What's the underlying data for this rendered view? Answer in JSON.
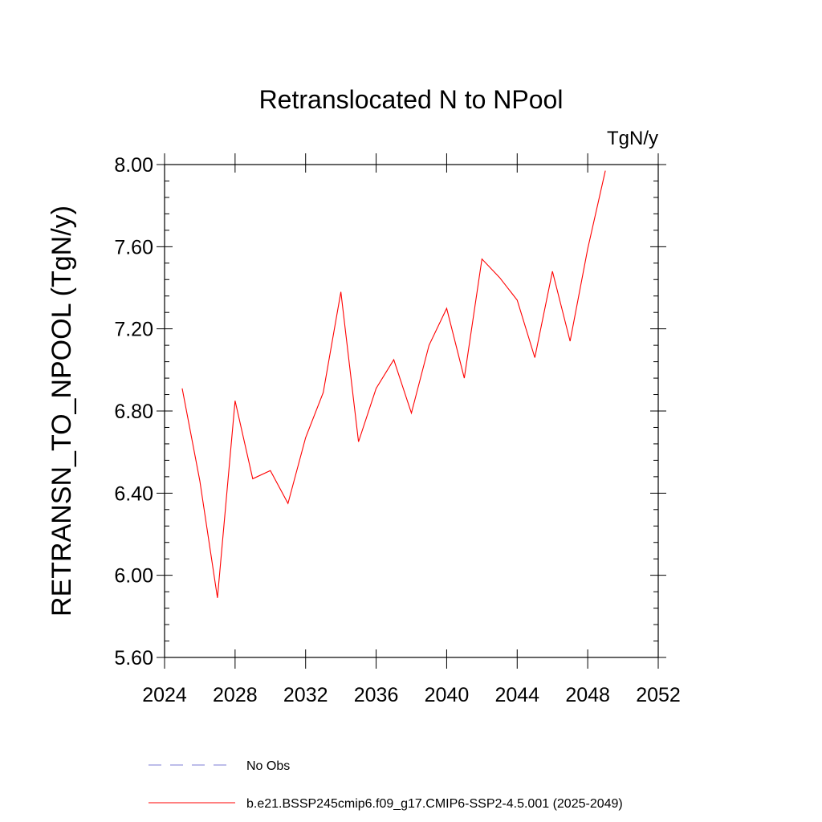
{
  "chart_data": {
    "type": "line",
    "title": "Retranslocated N to NPool",
    "units": "TgN/y",
    "ylabel": "RETRANSN_TO_NPOOL  (TgN/y)",
    "xlabel": "",
    "xlim": [
      2024,
      2052
    ],
    "ylim": [
      5.6,
      8.0
    ],
    "xticks": [
      "2024",
      "2028",
      "2032",
      "2036",
      "2040",
      "2044",
      "2048",
      "2052"
    ],
    "yticks": [
      "5.60",
      "6.00",
      "6.40",
      "6.80",
      "7.20",
      "7.60",
      "8.00"
    ],
    "x": [
      2025,
      2026,
      2027,
      2028,
      2029,
      2030,
      2031,
      2032,
      2033,
      2034,
      2035,
      2036,
      2037,
      2038,
      2039,
      2040,
      2041,
      2042,
      2043,
      2044,
      2045,
      2046,
      2047,
      2048,
      2049
    ],
    "series": [
      {
        "name": "b.e21.BSSP245cmip6.f09_g17.CMIP6-SSP2-4.5.001 (2025-2049)",
        "color": "#ff0000",
        "values": [
          6.91,
          6.46,
          5.89,
          6.85,
          6.47,
          6.51,
          6.35,
          6.67,
          6.89,
          7.38,
          6.65,
          6.91,
          7.05,
          6.79,
          7.12,
          7.3,
          6.96,
          7.54,
          7.45,
          7.34,
          7.06,
          7.48,
          7.14,
          7.59,
          7.97
        ]
      }
    ],
    "legend": [
      {
        "label": "No Obs",
        "color": "#7b7bd6",
        "style": "dashed"
      },
      {
        "label": "b.e21.BSSP245cmip6.f09_g17.CMIP6-SSP2-4.5.001 (2025-2049)",
        "color": "#ff0000",
        "style": "solid"
      }
    ],
    "legend_position": "bottom"
  }
}
